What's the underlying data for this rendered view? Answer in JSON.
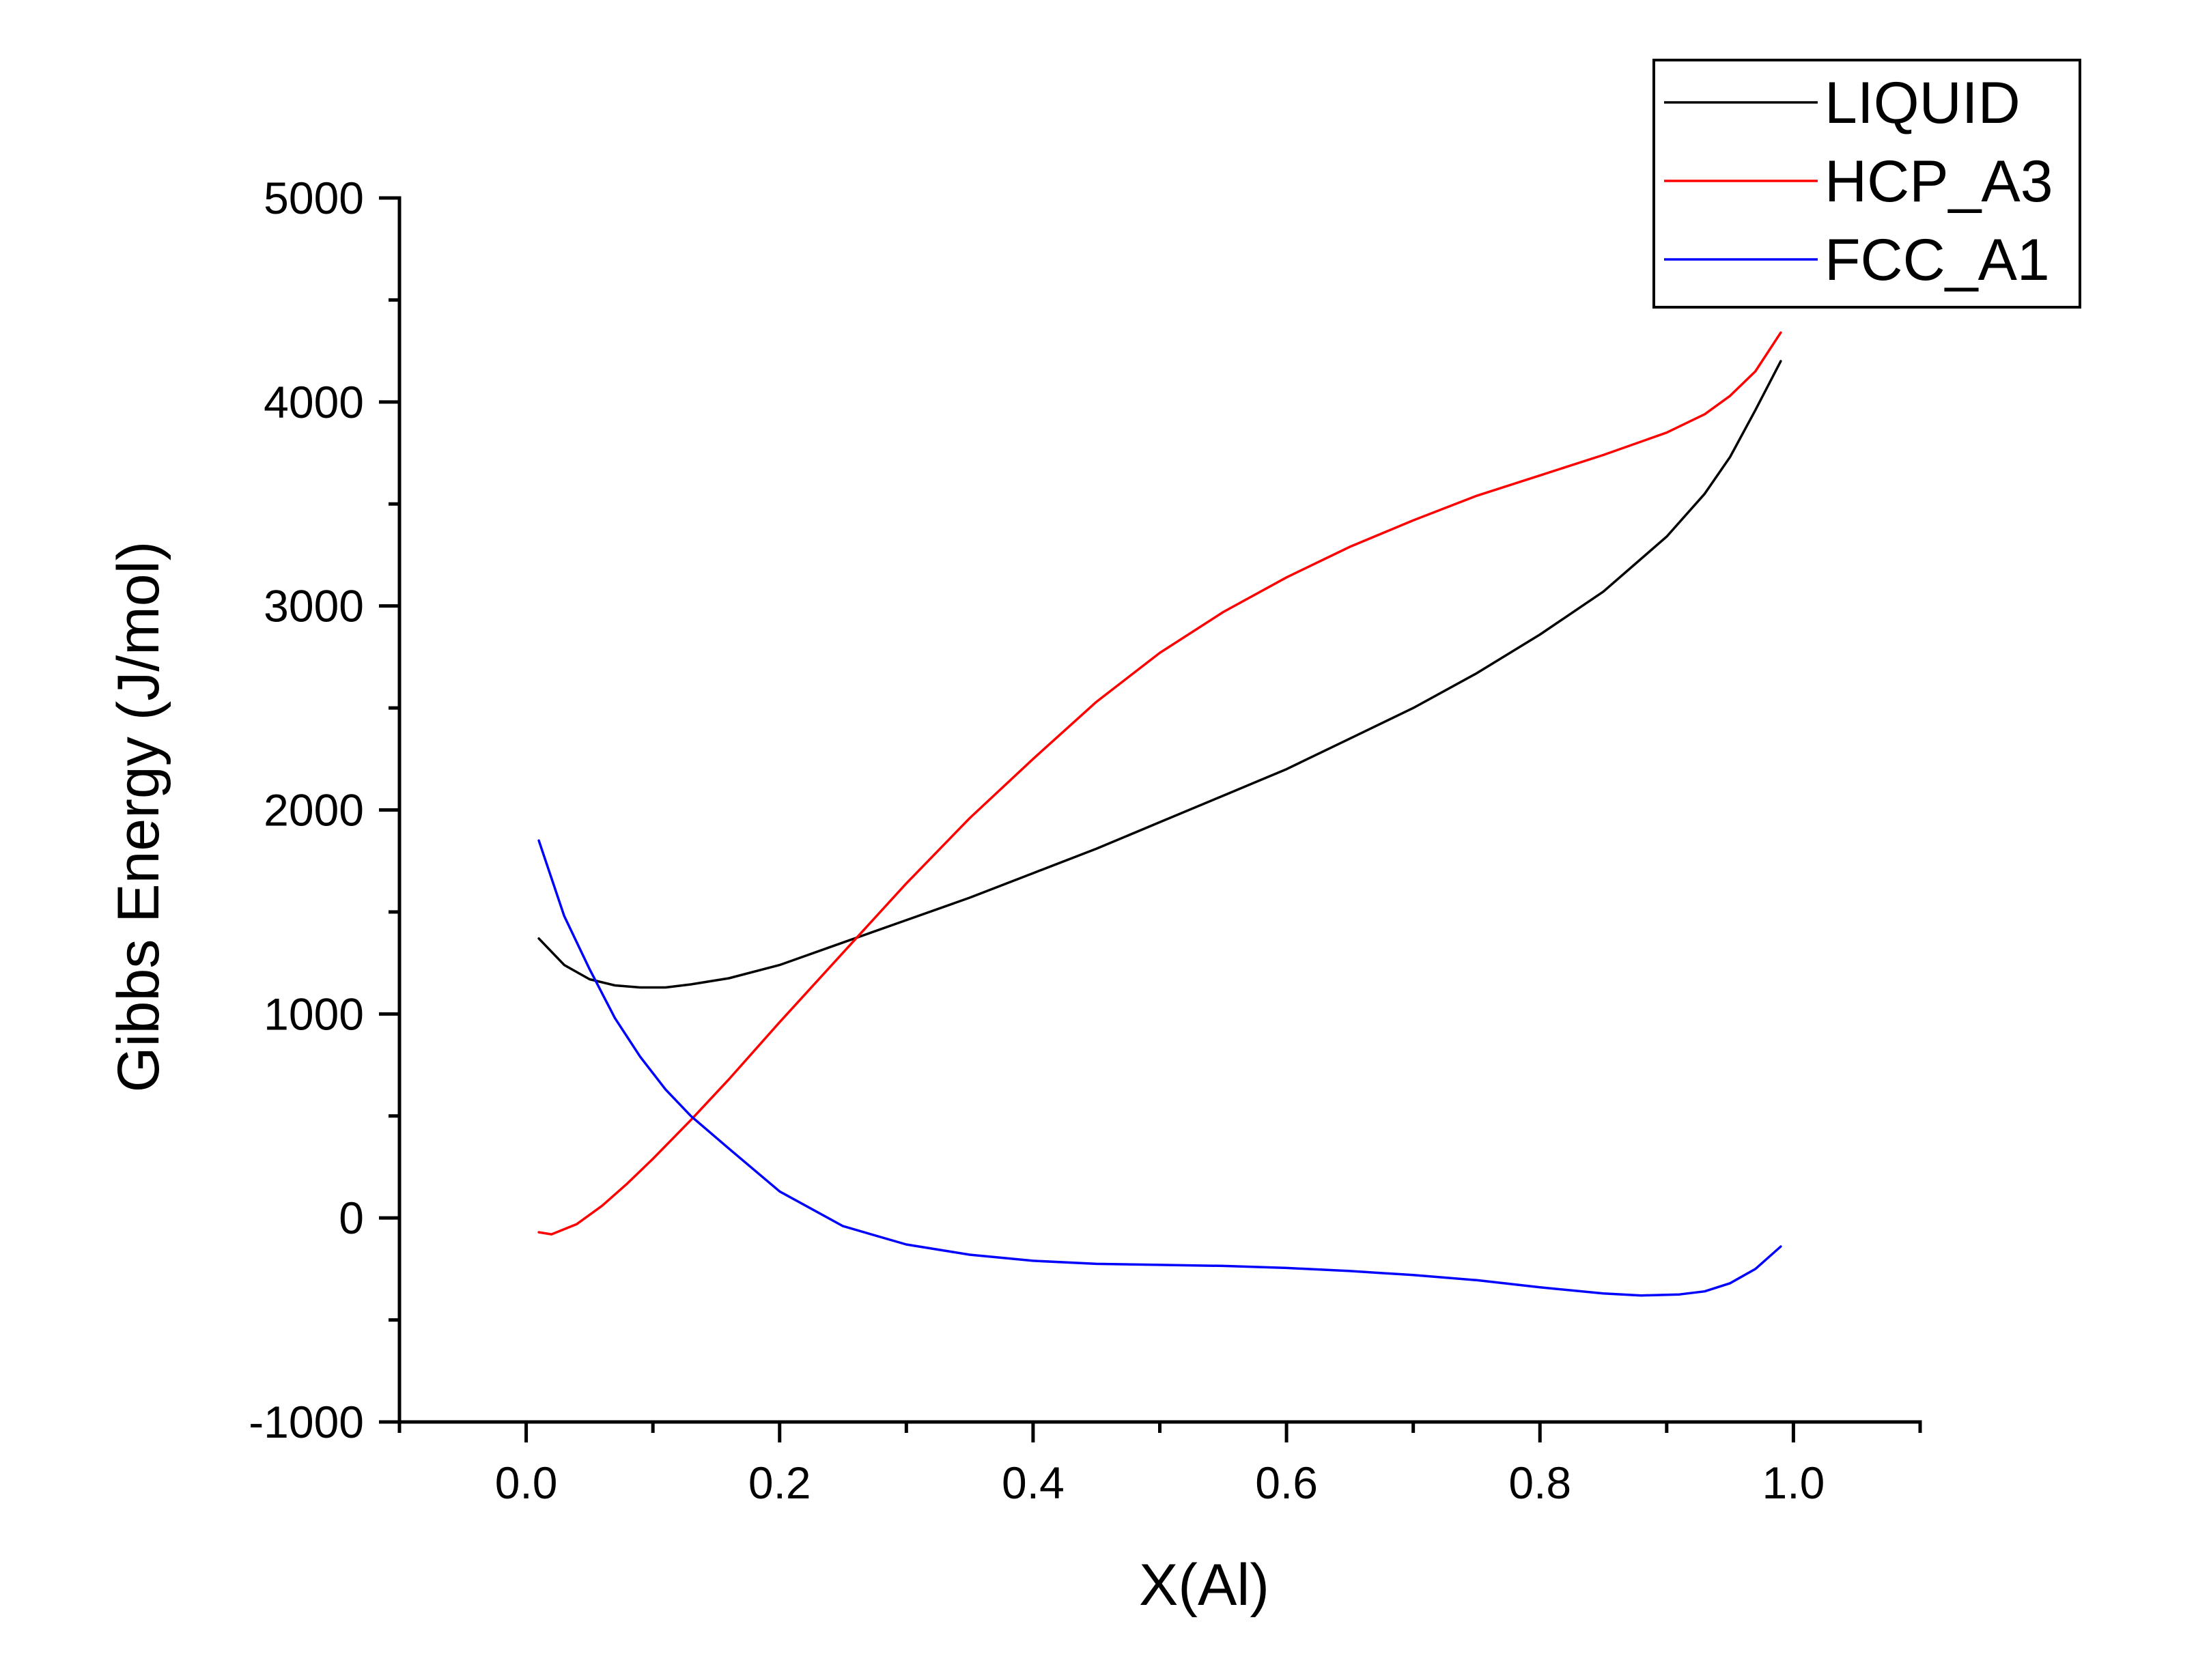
{
  "chart_data": {
    "type": "line",
    "title": "",
    "xlabel": "X(Al)",
    "ylabel": "Gibbs Energy (J/mol)",
    "xlim": [
      -0.1,
      1.1
    ],
    "ylim": [
      -1000,
      5000
    ],
    "x_ticks": [
      0.0,
      0.2,
      0.4,
      0.6,
      0.8,
      1.0
    ],
    "x_tick_labels": [
      "0.0",
      "0.2",
      "0.4",
      "0.6",
      "0.8",
      "1.0"
    ],
    "y_ticks": [
      -1000,
      0,
      1000,
      2000,
      3000,
      4000,
      5000
    ],
    "y_tick_labels": [
      "-1000",
      "0",
      "1000",
      "2000",
      "3000",
      "4000",
      "5000"
    ],
    "grid": false,
    "legend_position": "top-right",
    "series": [
      {
        "name": "LIQUID",
        "color": "#000000",
        "x": [
          0.01,
          0.03,
          0.05,
          0.07,
          0.09,
          0.11,
          0.13,
          0.16,
          0.2,
          0.25,
          0.3,
          0.35,
          0.4,
          0.45,
          0.5,
          0.55,
          0.6,
          0.65,
          0.7,
          0.75,
          0.8,
          0.85,
          0.9,
          0.93,
          0.95,
          0.97,
          0.99
        ],
        "y": [
          1370,
          1240,
          1170,
          1140,
          1130,
          1130,
          1145,
          1175,
          1240,
          1350,
          1460,
          1570,
          1690,
          1810,
          1940,
          2070,
          2200,
          2350,
          2500,
          2670,
          2860,
          3070,
          3340,
          3550,
          3730,
          3960,
          4200
        ]
      },
      {
        "name": "HCP_A3",
        "color": "#ff0000",
        "x": [
          0.01,
          0.02,
          0.04,
          0.06,
          0.08,
          0.1,
          0.13,
          0.16,
          0.2,
          0.25,
          0.3,
          0.35,
          0.4,
          0.45,
          0.5,
          0.55,
          0.6,
          0.65,
          0.7,
          0.75,
          0.8,
          0.85,
          0.9,
          0.93,
          0.95,
          0.97,
          0.99
        ],
        "y": [
          -70,
          -80,
          -30,
          60,
          170,
          290,
          480,
          680,
          960,
          1300,
          1640,
          1960,
          2250,
          2530,
          2770,
          2970,
          3140,
          3290,
          3420,
          3540,
          3640,
          3740,
          3850,
          3940,
          4030,
          4150,
          4340
        ]
      },
      {
        "name": "FCC_A1",
        "color": "#0000ff",
        "x": [
          0.01,
          0.03,
          0.05,
          0.07,
          0.09,
          0.11,
          0.13,
          0.16,
          0.2,
          0.25,
          0.3,
          0.35,
          0.4,
          0.45,
          0.5,
          0.55,
          0.6,
          0.65,
          0.7,
          0.75,
          0.8,
          0.85,
          0.88,
          0.91,
          0.93,
          0.95,
          0.97,
          0.99
        ],
        "y": [
          1850,
          1480,
          1220,
          980,
          790,
          630,
          500,
          340,
          130,
          -40,
          -130,
          -180,
          -210,
          -225,
          -230,
          -235,
          -245,
          -260,
          -280,
          -305,
          -340,
          -370,
          -380,
          -375,
          -360,
          -320,
          -250,
          -140
        ]
      }
    ]
  }
}
